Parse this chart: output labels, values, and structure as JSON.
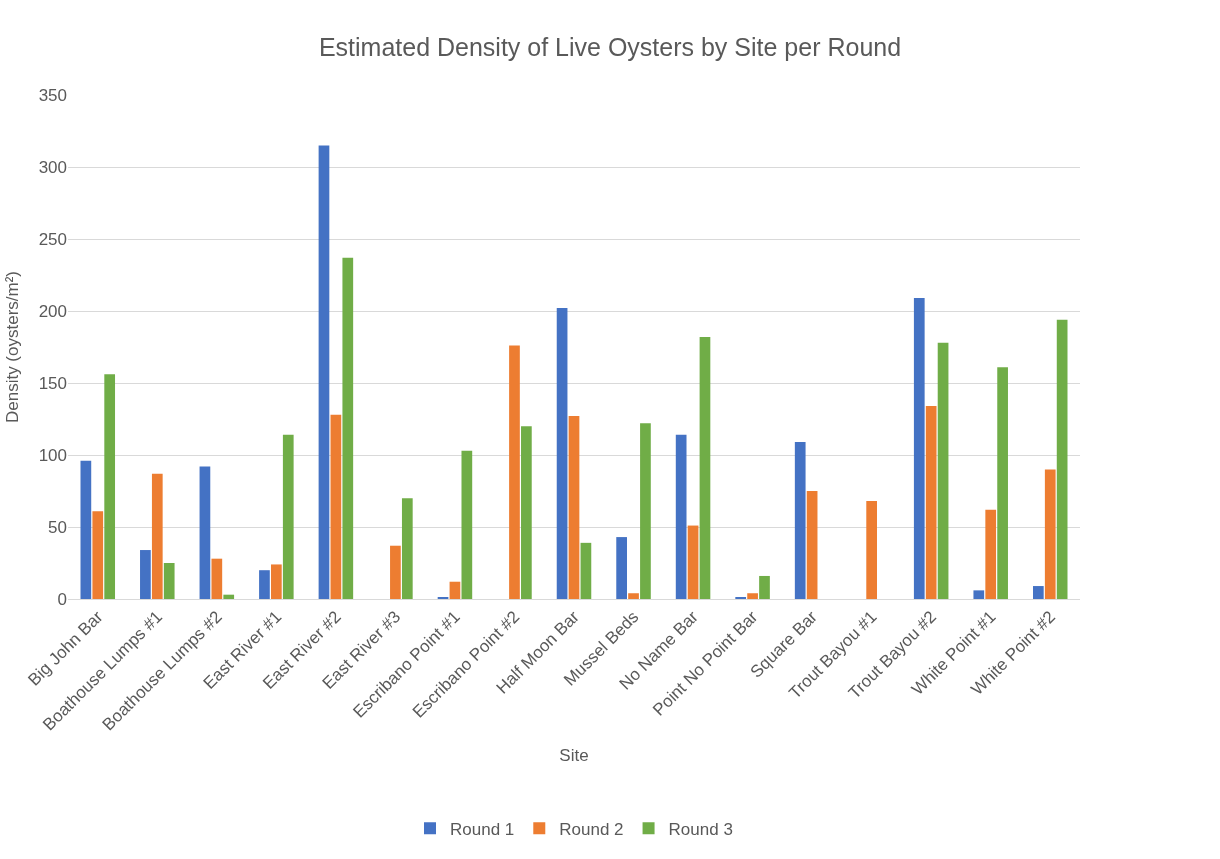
{
  "chart_data": {
    "type": "bar",
    "title": "Estimated Density of Live Oysters by Site per Round",
    "xlabel": "Site",
    "ylabel": "Density (oysters/m²)",
    "categories": [
      "Big John Bar",
      "Boathouse Lumps #1",
      "Boathouse Lumps #2",
      "East River #1",
      "East River #2",
      "East River #3",
      "Escribano Point #1",
      "Escribano Point #2",
      "Half Moon Bar",
      "Mussel Beds",
      "No Name Bar",
      "Point No Point Bar",
      "Square Bar",
      "Trout Bayou #1",
      "Trout Bayou #2",
      "White Point #1",
      "White Point #2"
    ],
    "series": [
      {
        "name": "Round 1",
        "color": "#4472c4",
        "values": [
          96,
          34,
          92,
          20,
          315,
          0,
          1,
          0,
          202,
          43,
          114,
          1,
          109,
          0,
          209,
          6,
          9
        ]
      },
      {
        "name": "Round 2",
        "color": "#ed7d31",
        "values": [
          61,
          87,
          28,
          24,
          128,
          37,
          12,
          176,
          127,
          4,
          51,
          4,
          75,
          68,
          134,
          62,
          90
        ]
      },
      {
        "name": "Round 3",
        "color": "#70ad47",
        "values": [
          156,
          25,
          3,
          114,
          237,
          70,
          103,
          120,
          39,
          122,
          182,
          16,
          0,
          0,
          178,
          161,
          194
        ]
      }
    ],
    "ylim": [
      0,
      350
    ],
    "yticks": [
      0,
      50,
      100,
      150,
      200,
      250,
      300,
      350
    ],
    "grid": "y",
    "legend": "bottom"
  }
}
